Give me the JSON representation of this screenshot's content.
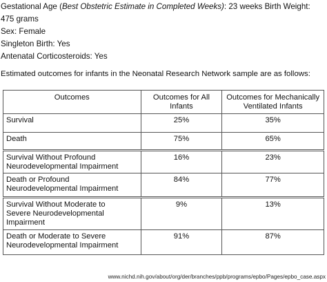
{
  "header": {
    "gestational_label": "Gestational Age (",
    "gestational_italic": "Best Obstetric Estimate in Completed Weeks)",
    "gestational_value": ": 23 weeks Birth Weight:",
    "birth_weight_value": "475 grams",
    "sex": "Sex: Female",
    "singleton": "Singleton Birth: Yes",
    "antenatal": "Antenatal Corticosteroids: Yes"
  },
  "intro": "Estimated outcomes for infants in the Neonatal Research Network sample are as follows:",
  "table": {
    "headers": {
      "outcomes": "Outcomes",
      "all_line1": "Outcomes for All",
      "all_line2": "Infants",
      "vent_line1": "Outcomes for Mechanically",
      "vent_line2": "Ventilated Infants"
    },
    "rows": [
      {
        "line1": "Survival",
        "line2": "",
        "line3": "",
        "all": "25%",
        "vent": "35%"
      },
      {
        "line1": "Death",
        "line2": "",
        "line3": "",
        "all": "75%",
        "vent": "65%"
      },
      {
        "line1": "Survival Without Profound",
        "line2": "Neurodevelopmental Impairment",
        "line3": "",
        "all": "16%",
        "vent": "23%"
      },
      {
        "line1": "Death or Profound",
        "line2": "Neurodevelopmental Impairment",
        "line3": "",
        "all": "84%",
        "vent": "77%"
      },
      {
        "line1": "Survival Without Moderate to",
        "line2": "Severe Neurodevelopmental",
        "line3": "Impairment",
        "all": "9%",
        "vent": "13%"
      },
      {
        "line1": "Death or Moderate to Severe",
        "line2": "Neurodevelopmental Impairment",
        "line3": "",
        "all": "91%",
        "vent": "87%"
      }
    ]
  },
  "footer_url": "www.nichd.nih.gov/about/org/der/branches/ppb/programs/epbo/Pages/epbo_case.aspx"
}
